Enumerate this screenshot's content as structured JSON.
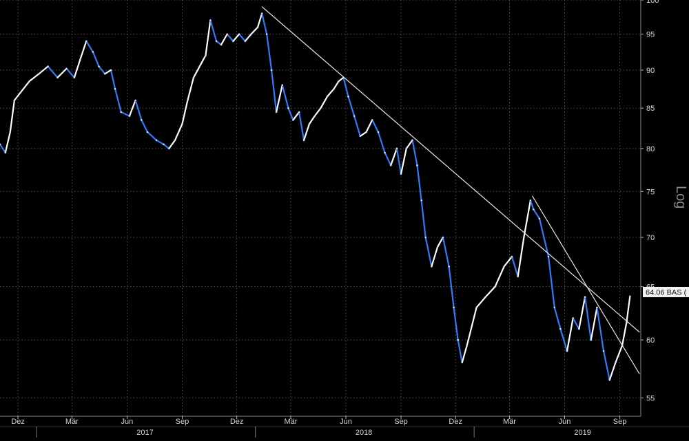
{
  "chart_data": {
    "type": "line",
    "title": "",
    "scale": "log",
    "scale_label": "Log",
    "grid": true,
    "colors": {
      "background": "#000000",
      "up": "#ffffff",
      "down": "#2f7bff",
      "trendline": "#e8e8e8",
      "grid": "#555555"
    },
    "y_axis": {
      "side": "right",
      "ticks": [
        55,
        60,
        65,
        70,
        75,
        80,
        85,
        90,
        95,
        100
      ],
      "ylim": [
        53.5,
        100
      ]
    },
    "x_axis": {
      "month_ticks": [
        {
          "label": "Dez",
          "date": "2016-12-01"
        },
        {
          "label": "Mär",
          "date": "2017-03-01"
        },
        {
          "label": "Jun",
          "date": "2017-06-01"
        },
        {
          "label": "Sep",
          "date": "2017-09-01"
        },
        {
          "label": "Dez",
          "date": "2017-12-01"
        },
        {
          "label": "Mär",
          "date": "2018-03-01"
        },
        {
          "label": "Jun",
          "date": "2018-06-01"
        },
        {
          "label": "Sep",
          "date": "2018-09-01"
        },
        {
          "label": "Dez",
          "date": "2018-12-01"
        },
        {
          "label": "Mär",
          "date": "2019-03-01"
        },
        {
          "label": "Jun",
          "date": "2019-06-01"
        },
        {
          "label": "Sep",
          "date": "2019-09-01"
        }
      ],
      "years": [
        {
          "label": "2017",
          "date": "2017-07-01"
        },
        {
          "label": "2018",
          "date": "2018-07-01"
        },
        {
          "label": "2019",
          "date": "2019-07-01"
        }
      ],
      "year_dividers": [
        "2017-01-01",
        "2018-01-01",
        "2019-01-01"
      ],
      "xlim": [
        "2016-11-01",
        "2019-10-06"
      ]
    },
    "last_price": {
      "value": 64.06,
      "label": "64.06 BAS ("
    },
    "series": [
      {
        "points": [
          [
            "2016-11-01",
            80.5
          ],
          [
            "2016-11-10",
            79.5
          ],
          [
            "2016-11-18",
            82
          ],
          [
            "2016-11-25",
            86
          ],
          [
            "2016-12-05",
            87
          ],
          [
            "2016-12-20",
            88.5
          ],
          [
            "2017-01-05",
            89.5
          ],
          [
            "2017-01-20",
            90.5
          ],
          [
            "2017-02-05",
            89
          ],
          [
            "2017-02-20",
            90.2
          ],
          [
            "2017-03-05",
            89
          ],
          [
            "2017-03-15",
            91.5
          ],
          [
            "2017-03-25",
            94
          ],
          [
            "2017-04-05",
            92.5
          ],
          [
            "2017-04-15",
            90.5
          ],
          [
            "2017-04-25",
            89.5
          ],
          [
            "2017-05-05",
            90
          ],
          [
            "2017-05-12",
            87.5
          ],
          [
            "2017-05-22",
            84.5
          ],
          [
            "2017-06-05",
            84
          ],
          [
            "2017-06-15",
            86
          ],
          [
            "2017-06-25",
            83.5
          ],
          [
            "2017-07-05",
            82
          ],
          [
            "2017-07-20",
            81
          ],
          [
            "2017-08-01",
            80.5
          ],
          [
            "2017-08-10",
            80
          ],
          [
            "2017-08-20",
            81
          ],
          [
            "2017-09-01",
            83
          ],
          [
            "2017-09-10",
            86
          ],
          [
            "2017-09-20",
            89
          ],
          [
            "2017-09-30",
            90.5
          ],
          [
            "2017-10-10",
            92
          ],
          [
            "2017-10-18",
            97
          ],
          [
            "2017-10-28",
            94
          ],
          [
            "2017-11-05",
            93.5
          ],
          [
            "2017-11-15",
            95
          ],
          [
            "2017-11-25",
            94
          ],
          [
            "2017-12-05",
            95
          ],
          [
            "2017-12-15",
            94
          ],
          [
            "2017-12-25",
            95
          ],
          [
            "2018-01-05",
            96
          ],
          [
            "2018-01-12",
            98
          ],
          [
            "2018-01-20",
            95
          ],
          [
            "2018-01-28",
            90
          ],
          [
            "2018-02-05",
            84.5
          ],
          [
            "2018-02-15",
            88
          ],
          [
            "2018-02-25",
            85
          ],
          [
            "2018-03-05",
            83.5
          ],
          [
            "2018-03-15",
            84.5
          ],
          [
            "2018-03-23",
            81
          ],
          [
            "2018-04-01",
            83
          ],
          [
            "2018-04-10",
            84
          ],
          [
            "2018-04-20",
            85
          ],
          [
            "2018-05-01",
            86.5
          ],
          [
            "2018-05-12",
            87.5
          ],
          [
            "2018-05-20",
            88.5
          ],
          [
            "2018-05-28",
            89
          ],
          [
            "2018-06-05",
            86.5
          ],
          [
            "2018-06-15",
            84
          ],
          [
            "2018-06-25",
            81.5
          ],
          [
            "2018-07-05",
            82
          ],
          [
            "2018-07-15",
            83.5
          ],
          [
            "2018-07-25",
            82
          ],
          [
            "2018-08-05",
            79.5
          ],
          [
            "2018-08-15",
            78
          ],
          [
            "2018-08-25",
            80
          ],
          [
            "2018-09-01",
            77
          ],
          [
            "2018-09-10",
            80
          ],
          [
            "2018-09-20",
            81
          ],
          [
            "2018-09-28",
            78
          ],
          [
            "2018-10-05",
            74
          ],
          [
            "2018-10-12",
            70
          ],
          [
            "2018-10-22",
            67
          ],
          [
            "2018-11-01",
            69
          ],
          [
            "2018-11-10",
            70
          ],
          [
            "2018-11-20",
            67
          ],
          [
            "2018-11-28",
            63
          ],
          [
            "2018-12-05",
            60
          ],
          [
            "2018-12-12",
            58
          ],
          [
            "2018-12-20",
            59.5
          ],
          [
            "2019-01-05",
            63
          ],
          [
            "2019-01-20",
            64
          ],
          [
            "2019-02-05",
            65
          ],
          [
            "2019-02-20",
            67
          ],
          [
            "2019-03-05",
            68
          ],
          [
            "2019-03-15",
            66
          ],
          [
            "2019-03-25",
            70
          ],
          [
            "2019-04-05",
            74
          ],
          [
            "2019-04-10",
            73
          ],
          [
            "2019-04-20",
            72
          ],
          [
            "2019-05-05",
            68
          ],
          [
            "2019-05-15",
            63
          ],
          [
            "2019-05-25",
            61
          ],
          [
            "2019-06-05",
            59
          ],
          [
            "2019-06-15",
            62
          ],
          [
            "2019-06-25",
            61
          ],
          [
            "2019-07-05",
            64
          ],
          [
            "2019-07-15",
            60
          ],
          [
            "2019-07-25",
            63
          ],
          [
            "2019-08-05",
            59
          ],
          [
            "2019-08-15",
            56.5
          ],
          [
            "2019-08-25",
            58
          ],
          [
            "2019-09-05",
            59.5
          ],
          [
            "2019-09-12",
            61.5
          ],
          [
            "2019-09-18",
            64.06
          ]
        ]
      }
    ],
    "trendlines": [
      {
        "from": [
          "2018-01-12",
          99
        ],
        "to": [
          "2019-10-04",
          60.7
        ]
      },
      {
        "from": [
          "2019-04-08",
          74.5
        ],
        "to": [
          "2019-10-04",
          57
        ]
      }
    ]
  }
}
